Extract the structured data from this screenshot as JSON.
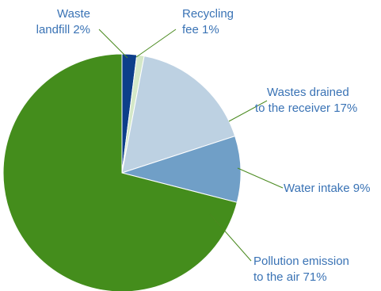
{
  "chart_data": {
    "type": "pie",
    "title": "",
    "slices": [
      {
        "label_lines": [
          "Waste",
          "landfill 2%"
        ],
        "value": 2,
        "color": "#0d3f8a",
        "label_color": "#3a73b5",
        "leader_color": "#4a8a1f"
      },
      {
        "label_lines": [
          "Recycling",
          "fee 1%"
        ],
        "value": 1,
        "color": "#d4e8c8",
        "label_color": "#3a73b5",
        "leader_color": "#4a8a1f"
      },
      {
        "label_lines": [
          "Wastes drained",
          "to the receiver 17%"
        ],
        "value": 17,
        "color": "#bdd1e2",
        "label_color": "#3a73b5",
        "leader_color": "#4a8a1f"
      },
      {
        "label_lines": [
          "Water intake 9%"
        ],
        "value": 9,
        "color": "#709fc7",
        "label_color": "#3a73b5",
        "leader_color": "#4a8a1f"
      },
      {
        "label_lines": [
          "Pollution emission",
          "to the air 71%"
        ],
        "value": 71,
        "color": "#448d1c",
        "label_color": "#3a73b5",
        "leader_color": "#4a8a1f"
      }
    ],
    "start": "12 o'clock",
    "direction": "clockwise",
    "legend": "none"
  }
}
